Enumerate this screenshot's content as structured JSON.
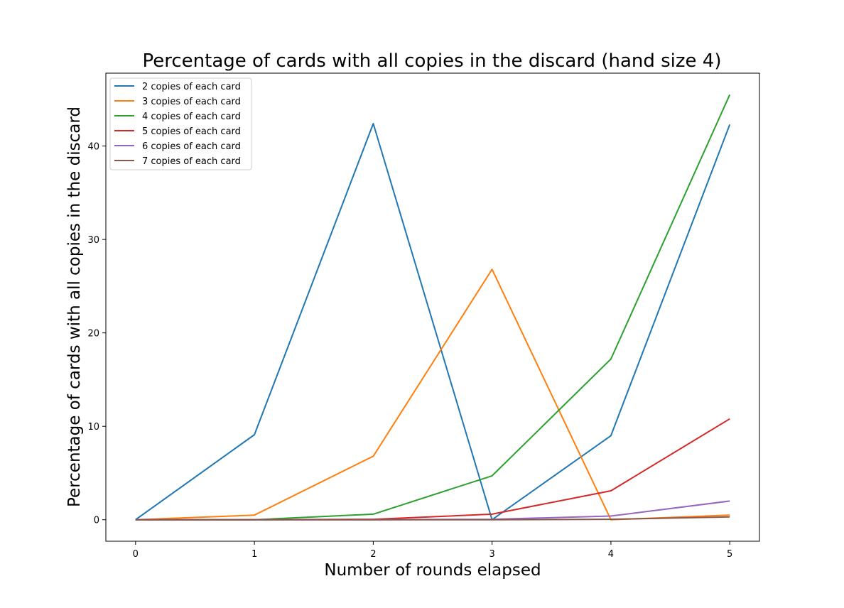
{
  "chart_data": {
    "type": "line",
    "title": "Percentage of cards with all copies in the discard (hand size 4)",
    "xlabel": "Number of rounds elapsed",
    "ylabel": "Percentage of cards with all copies in the discard",
    "x": [
      0,
      1,
      2,
      3,
      4,
      5
    ],
    "xticks": [
      "0",
      "1",
      "2",
      "3",
      "4",
      "5"
    ],
    "yticks": [
      "0",
      "10",
      "20",
      "30",
      "40"
    ],
    "xlim": [
      -0.25,
      5.25
    ],
    "ylim": [
      -2.3,
      47.8
    ],
    "grid": false,
    "legend_position": "top-left",
    "series": [
      {
        "name": "2 copies of each card",
        "color": "#1f77b4",
        "values": [
          0,
          9.1,
          42.4,
          0,
          9.0,
          42.3
        ]
      },
      {
        "name": "3 copies of each card",
        "color": "#ff7f0e",
        "values": [
          0,
          0.5,
          6.8,
          26.8,
          0,
          0.5
        ]
      },
      {
        "name": "4 copies of each card",
        "color": "#2ca02c",
        "values": [
          0,
          0,
          0.6,
          4.7,
          17.2,
          45.5
        ]
      },
      {
        "name": "5 copies of each card",
        "color": "#d62728",
        "values": [
          0,
          0,
          0.05,
          0.6,
          3.1,
          10.8
        ]
      },
      {
        "name": "6 copies of each card",
        "color": "#9467bd",
        "values": [
          0,
          0,
          0,
          0.05,
          0.4,
          2.0
        ]
      },
      {
        "name": "7 copies of each card",
        "color": "#8c564b",
        "values": [
          0,
          0,
          0,
          0,
          0.05,
          0.3
        ]
      }
    ]
  }
}
